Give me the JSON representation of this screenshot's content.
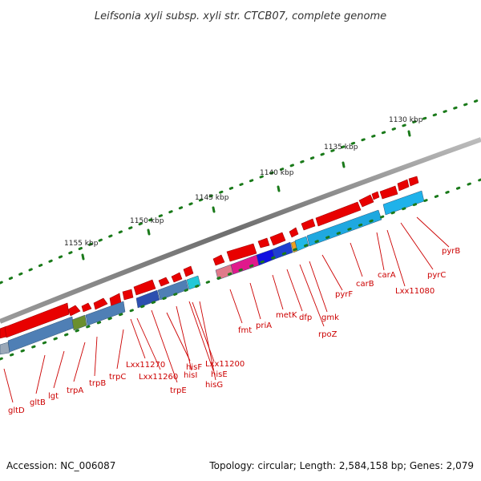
{
  "title": "Leifsonia xyli subsp. xyli str. CTCB07, complete genome",
  "footer": {
    "accession": "Accession: NC_006087",
    "summary": "Topology: circular; Length: 2,584,158 bp; Genes: 2,079"
  },
  "scale_labels": [
    "1155 kbp",
    "1150 kbp",
    "1145 kbp",
    "1140 kbp",
    "1135 kbp",
    "1130 kbp"
  ],
  "gene_labels": [
    "gltD",
    "gltB",
    "lgt",
    "trpA",
    "trpB",
    "trpC",
    "Lxx11270",
    "Lxx11260",
    "trpE",
    "hisF",
    "hisI",
    "Lxx11200",
    "hisE",
    "hisG",
    "fmt",
    "priA",
    "metK",
    "dfp",
    "rpoZ",
    "gmk",
    "pyrF",
    "carB",
    "carA",
    "Lxx11080",
    "pyrC",
    "pyrB"
  ],
  "colors": {
    "gene_red": "#e80000",
    "label_red": "#cc0000",
    "tick_green": "#1a7a1a",
    "backbone_gray": "#7a7a7a"
  }
}
